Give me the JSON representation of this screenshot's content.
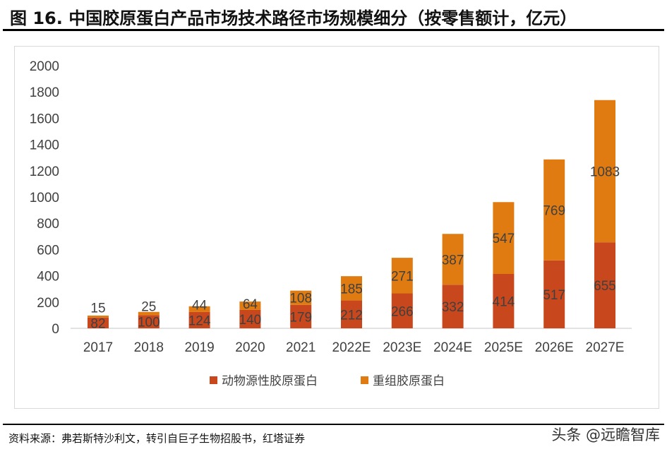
{
  "title": "图 16. 中国胶原蛋白产品市场技术路径市场规模细分（按零售额计，亿元）",
  "source": "资料来源：弗若斯特沙利文，转引自巨子生物招股书，红塔证券",
  "watermark": "头条 @远瞻智库",
  "chart_data": {
    "type": "bar",
    "stacked": true,
    "categories": [
      "2017",
      "2018",
      "2019",
      "2020",
      "2021",
      "2022E",
      "2023E",
      "2024E",
      "2025E",
      "2026E",
      "2027E"
    ],
    "series": [
      {
        "name": "动物源性胶原蛋白",
        "color": "#C9471C",
        "values": [
          82,
          100,
          124,
          140,
          179,
          212,
          266,
          332,
          414,
          517,
          655
        ]
      },
      {
        "name": "重组胶原蛋白",
        "color": "#E07B12",
        "values": [
          15,
          25,
          44,
          64,
          108,
          185,
          271,
          387,
          547,
          769,
          1083
        ]
      }
    ],
    "ylim": [
      0,
      2000
    ],
    "yticks": [
      0,
      200,
      400,
      600,
      800,
      1000,
      1200,
      1400,
      1600,
      1800,
      2000
    ],
    "grid": false,
    "legend": "bottom",
    "title": "",
    "xlabel": "",
    "ylabel": ""
  }
}
